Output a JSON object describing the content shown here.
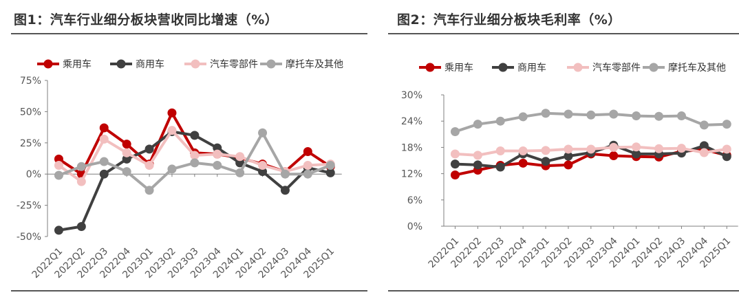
{
  "panels": {
    "left": {
      "title": "图1：汽车行业细分板块营收同比增速（%）"
    },
    "right": {
      "title": "图2：汽车行业细分板块毛利率（%）"
    }
  },
  "chart_data": [
    {
      "type": "line",
      "title": "图1：汽车行业细分板块营收同比增速（%）",
      "x": [
        "2022Q1",
        "2022Q2",
        "2022Q3",
        "2022Q4",
        "2023Q1",
        "2023Q2",
        "2023Q3",
        "2023Q4",
        "2024Q1",
        "2024Q2",
        "2024Q3",
        "2024Q4",
        "2025Q1"
      ],
      "ylim": [
        -50,
        75
      ],
      "yticks": [
        -50,
        -25,
        0,
        25,
        50,
        75
      ],
      "ytick_labels": [
        "-50%",
        "-25%",
        "0%",
        "25%",
        "50%",
        "75%"
      ],
      "xlabel": "",
      "ylabel": "",
      "grid": false,
      "legend_position": "top",
      "series": [
        {
          "name": "乘用车",
          "color": "#C00000",
          "values": [
            12,
            0,
            37,
            24,
            8,
            49,
            17,
            16,
            13,
            8,
            2,
            18,
            6
          ]
        },
        {
          "name": "商用车",
          "color": "#404040",
          "values": [
            -45,
            -42,
            0,
            12,
            20,
            34,
            31,
            21,
            9,
            2,
            -13,
            5,
            1
          ]
        },
        {
          "name": "汽车零部件",
          "color": "#F2BFBF",
          "values": [
            7,
            -6,
            28,
            17,
            7,
            35,
            15,
            16,
            14,
            7,
            2,
            7,
            8
          ]
        },
        {
          "name": "摩托车及其他",
          "color": "#A6A6A6",
          "values": [
            -1,
            6,
            10,
            2,
            -13,
            4,
            9,
            7,
            1,
            33,
            0,
            0,
            7
          ]
        }
      ]
    },
    {
      "type": "line",
      "title": "图2：汽车行业细分板块毛利率（%）",
      "x": [
        "2022Q1",
        "2022Q2",
        "2022Q3",
        "2022Q4",
        "2023Q1",
        "2023Q2",
        "2023Q3",
        "2023Q4",
        "2024Q1",
        "2024Q2",
        "2024Q3",
        "2024Q4",
        "2025Q1"
      ],
      "ylim": [
        0,
        30
      ],
      "yticks": [
        0,
        6,
        12,
        18,
        24,
        30
      ],
      "ytick_labels": [
        "0%",
        "6%",
        "12%",
        "18%",
        "24%",
        "30%"
      ],
      "xlabel": "",
      "ylabel": "",
      "grid": false,
      "legend_position": "top",
      "series": [
        {
          "name": "乘用车",
          "color": "#C00000",
          "values": [
            11.7,
            12.8,
            13.9,
            14.4,
            13.8,
            14.0,
            16.5,
            16.1,
            15.9,
            15.8,
            17.1,
            17.5,
            16.2
          ]
        },
        {
          "name": "商用车",
          "color": "#404040",
          "values": [
            14.2,
            14.0,
            13.5,
            16.5,
            14.8,
            16.0,
            16.8,
            18.5,
            16.5,
            16.5,
            16.7,
            18.4,
            15.9
          ]
        },
        {
          "name": "汽车零部件",
          "color": "#F2BFBF",
          "values": [
            16.5,
            16.2,
            17.2,
            17.2,
            17.3,
            17.6,
            17.6,
            18.0,
            18.1,
            17.7,
            17.8,
            16.8,
            17.6
          ]
        },
        {
          "name": "摩托车及其他",
          "color": "#A6A6A6",
          "values": [
            21.6,
            23.3,
            24.0,
            25.0,
            25.8,
            25.6,
            25.4,
            25.6,
            25.2,
            25.1,
            25.2,
            23.1,
            23.3
          ]
        }
      ]
    }
  ]
}
